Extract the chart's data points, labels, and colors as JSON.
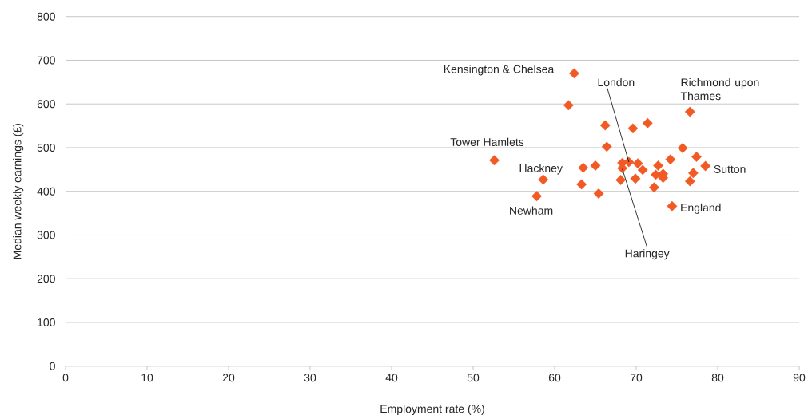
{
  "chart_data": {
    "type": "scatter",
    "xlabel": "Employment rate (%)",
    "ylabel": "Median weekly earnings (£)",
    "x": [
      62.4,
      61.7,
      52.6,
      58.6,
      57.8,
      63.5,
      63.3,
      66.2,
      69.6,
      71.4,
      76.6,
      66.4,
      75.7,
      65.0,
      65.4,
      68.3,
      69.1,
      68.3,
      70.2,
      70.8,
      68.1,
      69.9,
      72.7,
      74.2,
      77.4,
      78.5,
      77.0,
      76.6,
      72.4,
      73.3,
      73.3,
      72.2,
      74.4
    ],
    "values": [
      670,
      597,
      471,
      427,
      389,
      454,
      416,
      551,
      544,
      556,
      582,
      502,
      499,
      459,
      395,
      465,
      467,
      453,
      464,
      449,
      426,
      429,
      459,
      473,
      479,
      458,
      442,
      423,
      438,
      440,
      431,
      409,
      366
    ],
    "color": "#f15a24",
    "marker": "diamond",
    "xlim": [
      0,
      90
    ],
    "ylim": [
      0,
      800
    ],
    "xticks": [
      0,
      10,
      20,
      30,
      40,
      50,
      60,
      70,
      80,
      90
    ],
    "yticks": [
      0,
      100,
      200,
      300,
      400,
      500,
      600,
      700,
      800
    ],
    "grid": "y",
    "annotations": [
      {
        "text": "Kensington & Chelsea",
        "x": 62.4,
        "y": 670
      },
      {
        "text": "London",
        "x": 69.1,
        "y": 467
      },
      {
        "text": "Richmond upon Thames",
        "x": 76.6,
        "y": 582
      },
      {
        "text": "Tower Hamlets",
        "x": 52.6,
        "y": 471
      },
      {
        "text": "Hackney",
        "x": 58.6,
        "y": 427
      },
      {
        "text": "Newham",
        "x": 57.8,
        "y": 389
      },
      {
        "text": "Sutton",
        "x": 78.5,
        "y": 458
      },
      {
        "text": "England",
        "x": 74.4,
        "y": 366
      },
      {
        "text": "Haringey",
        "x": 68.3,
        "y": 453
      }
    ]
  }
}
